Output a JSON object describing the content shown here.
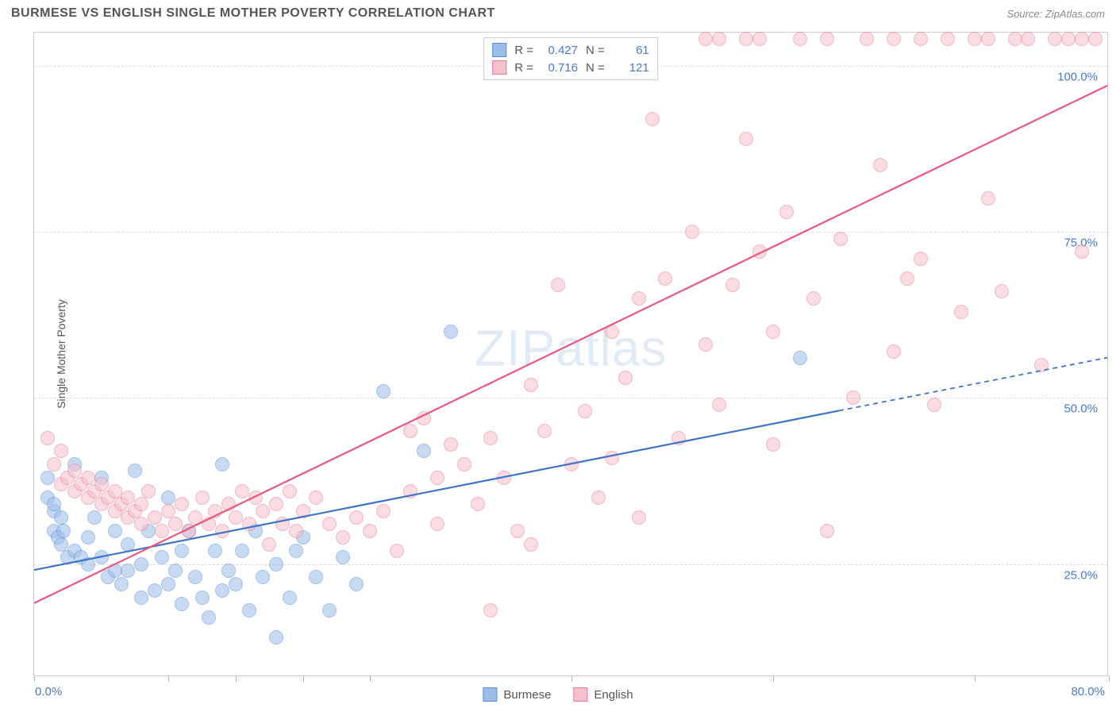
{
  "header": {
    "title": "BURMESE VS ENGLISH SINGLE MOTHER POVERTY CORRELATION CHART",
    "source": "Source: ZipAtlas.com"
  },
  "ylabel": "Single Mother Poverty",
  "watermark_zip": "ZIP",
  "watermark_atlas": "atlas",
  "chart": {
    "type": "scatter",
    "background_color": "#ffffff",
    "grid_color": "#dddddd",
    "border_color": "#cccccc",
    "xlim": [
      0,
      80
    ],
    "ylim": [
      8,
      105
    ],
    "ytick_values": [
      25,
      50,
      75,
      100
    ],
    "ytick_labels": [
      "25.0%",
      "50.0%",
      "75.0%",
      "100.0%"
    ],
    "xtick_values": [
      0,
      10,
      15,
      20,
      25,
      40,
      55,
      70,
      80
    ],
    "xtick_label_left": "0.0%",
    "xtick_label_right": "80.0%",
    "marker_radius": 9,
    "marker_opacity": 0.55,
    "marker_border_width": 1.2,
    "series": [
      {
        "name": "Burmese",
        "fill_color": "#9cbde8",
        "stroke_color": "#5a8ed6",
        "r_value": "0.427",
        "n_value": "61",
        "trend": {
          "x1": 0,
          "y1": 24,
          "x2": 60,
          "y2": 48,
          "x2_ext": 80,
          "y2_ext": 56,
          "line_color": "#3d72c7",
          "line_width": 2.2
        },
        "points": [
          [
            1,
            35
          ],
          [
            1,
            38
          ],
          [
            1.5,
            33
          ],
          [
            1.5,
            34
          ],
          [
            1.5,
            30
          ],
          [
            1.8,
            29
          ],
          [
            2,
            32
          ],
          [
            2,
            28
          ],
          [
            2.2,
            30
          ],
          [
            2.5,
            26
          ],
          [
            3,
            27
          ],
          [
            3,
            40
          ],
          [
            3.5,
            26
          ],
          [
            4,
            25
          ],
          [
            4,
            29
          ],
          [
            4.5,
            32
          ],
          [
            5,
            38
          ],
          [
            5,
            26
          ],
          [
            5.5,
            23
          ],
          [
            6,
            24
          ],
          [
            6,
            30
          ],
          [
            6.5,
            22
          ],
          [
            7,
            28
          ],
          [
            7,
            24
          ],
          [
            7.5,
            39
          ],
          [
            8,
            20
          ],
          [
            8,
            25
          ],
          [
            8.5,
            30
          ],
          [
            9,
            21
          ],
          [
            9.5,
            26
          ],
          [
            10,
            35
          ],
          [
            10,
            22
          ],
          [
            10.5,
            24
          ],
          [
            11,
            19
          ],
          [
            11,
            27
          ],
          [
            11.5,
            30
          ],
          [
            12,
            23
          ],
          [
            12.5,
            20
          ],
          [
            13,
            17
          ],
          [
            13.5,
            27
          ],
          [
            14,
            40
          ],
          [
            14,
            21
          ],
          [
            14.5,
            24
          ],
          [
            15,
            22
          ],
          [
            15.5,
            27
          ],
          [
            16,
            18
          ],
          [
            16.5,
            30
          ],
          [
            17,
            23
          ],
          [
            18,
            14
          ],
          [
            18,
            25
          ],
          [
            19,
            20
          ],
          [
            19.5,
            27
          ],
          [
            20,
            29
          ],
          [
            21,
            23
          ],
          [
            22,
            18
          ],
          [
            23,
            26
          ],
          [
            24,
            22
          ],
          [
            26,
            51
          ],
          [
            29,
            42
          ],
          [
            31,
            60
          ],
          [
            57,
            56
          ]
        ]
      },
      {
        "name": "English",
        "fill_color": "#f6c0cd",
        "stroke_color": "#e87a99",
        "r_value": "0.716",
        "n_value": "121",
        "trend": {
          "x1": 0,
          "y1": 19,
          "x2": 80,
          "y2": 97,
          "line_color": "#e85a82",
          "line_width": 2.2
        },
        "points": [
          [
            1,
            44
          ],
          [
            1.5,
            40
          ],
          [
            2,
            37
          ],
          [
            2,
            42
          ],
          [
            2.5,
            38
          ],
          [
            3,
            36
          ],
          [
            3,
            39
          ],
          [
            3.5,
            37
          ],
          [
            4,
            35
          ],
          [
            4,
            38
          ],
          [
            4.5,
            36
          ],
          [
            5,
            34
          ],
          [
            5,
            37
          ],
          [
            5.5,
            35
          ],
          [
            6,
            33
          ],
          [
            6,
            36
          ],
          [
            6.5,
            34
          ],
          [
            7,
            32
          ],
          [
            7,
            35
          ],
          [
            7.5,
            33
          ],
          [
            8,
            31
          ],
          [
            8,
            34
          ],
          [
            8.5,
            36
          ],
          [
            9,
            32
          ],
          [
            9.5,
            30
          ],
          [
            10,
            33
          ],
          [
            10.5,
            31
          ],
          [
            11,
            34
          ],
          [
            11.5,
            30
          ],
          [
            12,
            32
          ],
          [
            12.5,
            35
          ],
          [
            13,
            31
          ],
          [
            13.5,
            33
          ],
          [
            14,
            30
          ],
          [
            14.5,
            34
          ],
          [
            15,
            32
          ],
          [
            15.5,
            36
          ],
          [
            16,
            31
          ],
          [
            16.5,
            35
          ],
          [
            17,
            33
          ],
          [
            17.5,
            28
          ],
          [
            18,
            34
          ],
          [
            18.5,
            31
          ],
          [
            19,
            36
          ],
          [
            19.5,
            30
          ],
          [
            20,
            33
          ],
          [
            21,
            35
          ],
          [
            22,
            31
          ],
          [
            23,
            29
          ],
          [
            24,
            32
          ],
          [
            25,
            30
          ],
          [
            26,
            33
          ],
          [
            27,
            27
          ],
          [
            28,
            45
          ],
          [
            28,
            36
          ],
          [
            29,
            47
          ],
          [
            30,
            38
          ],
          [
            30,
            31
          ],
          [
            31,
            43
          ],
          [
            32,
            40
          ],
          [
            33,
            34
          ],
          [
            34,
            18
          ],
          [
            34,
            44
          ],
          [
            35,
            38
          ],
          [
            36,
            30
          ],
          [
            37,
            52
          ],
          [
            37,
            28
          ],
          [
            38,
            45
          ],
          [
            39,
            67
          ],
          [
            40,
            40
          ],
          [
            41,
            48
          ],
          [
            42,
            35
          ],
          [
            43,
            60
          ],
          [
            43,
            41
          ],
          [
            44,
            53
          ],
          [
            45,
            32
          ],
          [
            46,
            92
          ],
          [
            47,
            68
          ],
          [
            48,
            44
          ],
          [
            49,
            75
          ],
          [
            50,
            58
          ],
          [
            51,
            49
          ],
          [
            51,
            104
          ],
          [
            52,
            67
          ],
          [
            53,
            89
          ],
          [
            53,
            104
          ],
          [
            54,
            72
          ],
          [
            54,
            104
          ],
          [
            55,
            60
          ],
          [
            55,
            43
          ],
          [
            56,
            78
          ],
          [
            57,
            104
          ],
          [
            58,
            65
          ],
          [
            59,
            30
          ],
          [
            59,
            104
          ],
          [
            60,
            74
          ],
          [
            61,
            50
          ],
          [
            62,
            104
          ],
          [
            63,
            85
          ],
          [
            64,
            57
          ],
          [
            64,
            104
          ],
          [
            65,
            68
          ],
          [
            66,
            104
          ],
          [
            66,
            71
          ],
          [
            67,
            49
          ],
          [
            68,
            104
          ],
          [
            69,
            63
          ],
          [
            70,
            104
          ],
          [
            71,
            104
          ],
          [
            71,
            80
          ],
          [
            72,
            66
          ],
          [
            73,
            104
          ],
          [
            74,
            104
          ],
          [
            75,
            55
          ],
          [
            76,
            104
          ],
          [
            77,
            104
          ],
          [
            78,
            104
          ],
          [
            78,
            72
          ],
          [
            79,
            104
          ],
          [
            50,
            104
          ],
          [
            45,
            65
          ]
        ]
      }
    ]
  }
}
